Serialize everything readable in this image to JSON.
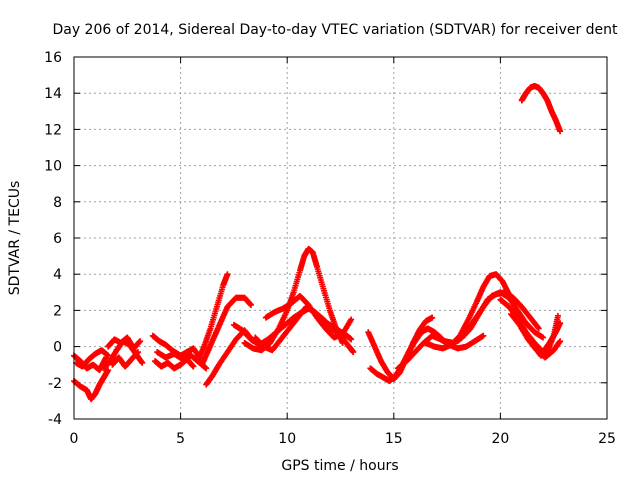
{
  "chart_data": {
    "type": "scatter",
    "title": "Day 206 of 2014, Sidereal Day-to-day VTEC variation (SDTVAR) for receiver dent",
    "xlabel": "GPS time / hours",
    "ylabel": "SDTVAR / TECUs",
    "xlim": [
      0,
      25
    ],
    "ylim": [
      -4,
      16
    ],
    "xticks": [
      "0",
      "5",
      "10",
      "15",
      "20",
      "25"
    ],
    "yticks": [
      "-4",
      "-2",
      "0",
      "2",
      "4",
      "6",
      "8",
      "10",
      "12",
      "14",
      "16"
    ],
    "grid": true,
    "marker": "+",
    "color": "#ff0000",
    "series": [
      {
        "name": "s1",
        "x": [
          0.0,
          0.3,
          0.6,
          0.9,
          1.2,
          1.5
        ],
        "y": [
          -0.5,
          -0.8,
          -1.2,
          -1.0,
          -1.3,
          -0.6
        ]
      },
      {
        "name": "s2",
        "x": [
          0.0,
          0.3,
          0.6,
          0.8,
          1.0,
          1.2,
          1.4,
          1.6
        ],
        "y": [
          -1.9,
          -2.2,
          -2.4,
          -2.9,
          -2.6,
          -2.1,
          -1.7,
          -1.3
        ]
      },
      {
        "name": "s3",
        "x": [
          0.1,
          0.4,
          0.7,
          1.0,
          1.3,
          1.6
        ],
        "y": [
          -0.9,
          -1.1,
          -0.7,
          -0.4,
          -0.2,
          -0.5
        ]
      },
      {
        "name": "s4",
        "x": [
          1.4,
          1.7,
          2.0,
          2.3,
          2.6,
          2.9,
          3.2
        ],
        "y": [
          -1.2,
          -0.8,
          -0.2,
          0.3,
          0.1,
          -0.4,
          -0.9
        ]
      },
      {
        "name": "s5",
        "x": [
          1.6,
          1.9,
          2.2,
          2.5,
          2.8,
          3.1
        ],
        "y": [
          0.0,
          0.4,
          0.2,
          0.5,
          -0.1,
          0.3
        ]
      },
      {
        "name": "s6",
        "x": [
          1.8,
          2.1,
          2.4,
          2.7,
          3.0
        ],
        "y": [
          -1.0,
          -0.6,
          -1.1,
          -0.7,
          -0.3
        ]
      },
      {
        "name": "s7",
        "x": [
          3.7,
          4.0,
          4.3,
          4.6,
          5.0,
          5.3,
          5.6,
          5.9
        ],
        "y": [
          0.6,
          0.3,
          0.1,
          -0.2,
          -0.5,
          -0.3,
          -0.1,
          -0.6
        ]
      },
      {
        "name": "s8",
        "x": [
          3.8,
          4.1,
          4.4,
          4.7,
          5.0,
          5.3,
          5.6
        ],
        "y": [
          -0.8,
          -1.1,
          -0.9,
          -1.2,
          -1.0,
          -0.7,
          -1.1
        ]
      },
      {
        "name": "s9",
        "x": [
          3.9,
          4.3,
          4.7,
          5.1,
          5.5,
          5.9,
          6.2
        ],
        "y": [
          -0.3,
          -0.6,
          -0.4,
          -0.7,
          -0.5,
          -0.9,
          -1.2
        ]
      },
      {
        "name": "s10",
        "x": [
          5.8,
          6.1,
          6.4,
          6.7,
          7.0,
          7.2
        ],
        "y": [
          -0.8,
          0.0,
          1.0,
          2.2,
          3.4,
          4.0
        ]
      },
      {
        "name": "s11",
        "x": [
          6.0,
          6.3,
          6.6,
          6.9,
          7.2,
          7.6,
          8.0,
          8.3
        ],
        "y": [
          -1.0,
          -0.2,
          0.6,
          1.4,
          2.2,
          2.7,
          2.7,
          2.3
        ]
      },
      {
        "name": "s12",
        "x": [
          6.2,
          6.5,
          6.8,
          7.2,
          7.6,
          8.0,
          8.4
        ],
        "y": [
          -2.1,
          -1.6,
          -1.0,
          -0.3,
          0.4,
          0.9,
          0.3
        ]
      },
      {
        "name": "s13",
        "x": [
          7.5,
          7.9,
          8.3,
          8.7,
          9.1,
          9.5,
          9.9,
          10.3,
          10.7,
          11.0,
          11.3,
          11.6,
          12.0,
          12.4,
          12.8,
          13.0
        ],
        "y": [
          1.2,
          0.9,
          0.4,
          0.1,
          0.4,
          0.8,
          1.2,
          1.6,
          1.9,
          2.1,
          1.9,
          1.5,
          1.2,
          0.9,
          0.6,
          0.4
        ]
      },
      {
        "name": "s14",
        "x": [
          8.0,
          8.4,
          8.8,
          9.2,
          9.6,
          10.0,
          10.3,
          10.6,
          10.8,
          11.0,
          11.2,
          11.4,
          11.7,
          12.0,
          12.3,
          12.6
        ],
        "y": [
          0.2,
          -0.1,
          -0.2,
          0.2,
          1.0,
          2.0,
          3.0,
          4.2,
          5.0,
          5.4,
          5.2,
          4.4,
          3.2,
          2.0,
          1.0,
          0.2
        ]
      },
      {
        "name": "s15",
        "x": [
          8.5,
          8.9,
          9.3,
          9.7,
          10.1,
          10.5,
          10.9,
          11.3,
          11.7,
          12.1,
          12.5,
          12.9,
          13.1
        ],
        "y": [
          0.5,
          0.0,
          -0.2,
          0.4,
          1.0,
          1.6,
          2.2,
          1.9,
          1.5,
          1.0,
          0.6,
          0.0,
          -0.3
        ]
      },
      {
        "name": "s16",
        "x": [
          9.0,
          9.4,
          9.8,
          10.2,
          10.6,
          11.0,
          11.4,
          11.8,
          12.2,
          12.6,
          13.0
        ],
        "y": [
          1.6,
          1.9,
          2.1,
          2.4,
          2.8,
          2.3,
          1.6,
          1.0,
          0.5,
          0.7,
          1.5
        ]
      },
      {
        "name": "s17",
        "x": [
          13.8,
          14.1,
          14.4,
          14.7,
          15.0,
          15.3,
          15.6,
          15.9,
          16.2,
          16.5,
          16.8
        ],
        "y": [
          0.8,
          0.0,
          -0.8,
          -1.4,
          -1.8,
          -1.4,
          -0.6,
          0.2,
          0.9,
          1.4,
          1.6
        ]
      },
      {
        "name": "s18",
        "x": [
          13.9,
          14.2,
          14.5,
          14.8,
          15.1,
          15.4,
          15.7,
          16.0,
          16.3,
          16.6,
          16.9,
          17.2
        ],
        "y": [
          -1.2,
          -1.5,
          -1.7,
          -1.9,
          -1.6,
          -1.0,
          -0.3,
          0.3,
          0.8,
          1.0,
          0.8,
          0.5
        ]
      },
      {
        "name": "s19",
        "x": [
          15.2,
          15.6,
          16.0,
          16.4,
          16.8,
          17.2,
          17.6,
          18.0,
          18.4,
          18.8,
          19.2
        ],
        "y": [
          -1.2,
          -0.8,
          -0.3,
          0.2,
          0.6,
          0.4,
          0.1,
          -0.1,
          0.0,
          0.3,
          0.6
        ]
      },
      {
        "name": "s20",
        "x": [
          16.5,
          16.9,
          17.3,
          17.7,
          18.1,
          18.5,
          18.9,
          19.2,
          19.5,
          19.8,
          20.1,
          20.4
        ],
        "y": [
          0.2,
          0.0,
          -0.1,
          0.1,
          0.6,
          1.5,
          2.5,
          3.3,
          3.9,
          4.0,
          3.6,
          2.9
        ]
      },
      {
        "name": "s21",
        "x": [
          17.0,
          17.4,
          17.8,
          18.2,
          18.6,
          19.0,
          19.4,
          19.8,
          20.2,
          20.6,
          21.0,
          21.4,
          21.8
        ],
        "y": [
          0.5,
          0.3,
          0.2,
          0.5,
          1.0,
          1.8,
          2.6,
          2.9,
          3.0,
          2.7,
          2.2,
          1.6,
          1.0
        ]
      },
      {
        "name": "s22",
        "x": [
          18.0,
          18.4,
          18.8,
          19.2,
          19.6,
          20.0,
          20.4,
          20.8,
          21.2,
          21.6,
          22.0
        ],
        "y": [
          0.3,
          0.8,
          1.5,
          2.2,
          2.8,
          3.0,
          2.7,
          2.0,
          1.3,
          0.8,
          0.5
        ]
      },
      {
        "name": "s23",
        "x": [
          20.0,
          20.4,
          20.8,
          21.2,
          21.6,
          22.0,
          22.3,
          22.6,
          22.8
        ],
        "y": [
          2.6,
          2.2,
          1.6,
          0.8,
          0.2,
          -0.3,
          0.2,
          0.8,
          1.3
        ]
      },
      {
        "name": "s24",
        "x": [
          20.5,
          20.9,
          21.3,
          21.7,
          22.1,
          22.5,
          22.8
        ],
        "y": [
          1.8,
          1.2,
          0.4,
          -0.2,
          -0.6,
          -0.2,
          0.3
        ]
      },
      {
        "name": "s25",
        "x": [
          21.0,
          21.3,
          21.6,
          21.9,
          22.2,
          22.5,
          22.7
        ],
        "y": [
          1.0,
          0.5,
          0.0,
          -0.5,
          -0.3,
          0.6,
          1.7
        ]
      },
      {
        "name": "s26",
        "x": [
          21.0,
          21.2,
          21.4,
          21.6,
          21.8,
          22.0,
          22.2,
          22.4,
          22.6,
          22.8
        ],
        "y": [
          13.6,
          14.0,
          14.3,
          14.4,
          14.3,
          14.0,
          13.6,
          13.0,
          12.5,
          11.9
        ]
      }
    ]
  }
}
